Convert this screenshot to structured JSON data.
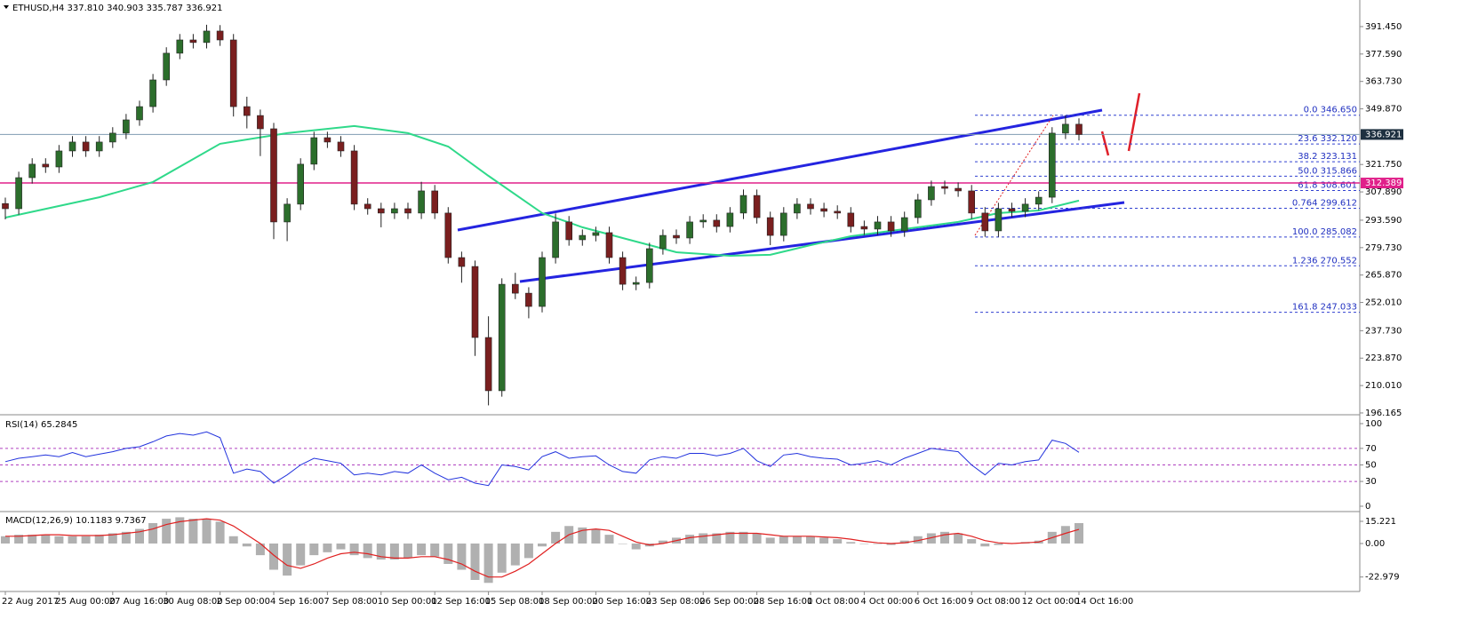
{
  "chart_data": {
    "type": "candlestick",
    "title": "ETHUSD,H4  337.810 340.903 335.787 336.921",
    "up_color": "#2c6e2c",
    "down_color": "#7a1f1f",
    "ylim": [
      195.7,
      401.3
    ],
    "yticks": [
      {
        "value": 391.45,
        "label": "391.450"
      },
      {
        "value": 377.59,
        "label": "377.590"
      },
      {
        "value": 363.73,
        "label": "363.730"
      },
      {
        "value": 349.87,
        "label": "349.870"
      },
      {
        "value": 321.75,
        "label": "321.750"
      },
      {
        "value": 307.89,
        "label": "307.890"
      },
      {
        "value": 293.59,
        "label": "293.590"
      },
      {
        "value": 279.73,
        "label": "279.730"
      },
      {
        "value": 265.87,
        "label": "265.870"
      },
      {
        "value": 252.01,
        "label": "252.010"
      },
      {
        "value": 237.73,
        "label": "237.730"
      },
      {
        "value": 223.87,
        "label": "223.870"
      },
      {
        "value": 210.01,
        "label": "210.010"
      },
      {
        "value": 196.165,
        "label": "196.165"
      }
    ],
    "xticks": [
      {
        "value": 0,
        "label": "22 Aug 2017"
      },
      {
        "value": 4,
        "label": "25 Aug 00:00"
      },
      {
        "value": 8,
        "label": "27 Aug 16:00"
      },
      {
        "value": 12,
        "label": "30 Aug 08:00"
      },
      {
        "value": 16,
        "label": "2 Sep 00:00"
      },
      {
        "value": 20,
        "label": "4 Sep 16:00"
      },
      {
        "value": 24,
        "label": "7 Sep 08:00"
      },
      {
        "value": 28,
        "label": "10 Sep 00:00"
      },
      {
        "value": 32,
        "label": "12 Sep 16:00"
      },
      {
        "value": 36,
        "label": "15 Sep 08:00"
      },
      {
        "value": 40,
        "label": "18 Sep 00:00"
      },
      {
        "value": 44,
        "label": "20 Sep 16:00"
      },
      {
        "value": 48,
        "label": "23 Sep 08:00"
      },
      {
        "value": 52,
        "label": "26 Sep 00:00"
      },
      {
        "value": 56,
        "label": "28 Sep 16:00"
      },
      {
        "value": 60,
        "label": "1 Oct 08:00"
      },
      {
        "value": 64,
        "label": "4 Oct 00:00"
      },
      {
        "value": 68,
        "label": "6 Oct 16:00"
      },
      {
        "value": 72,
        "label": "9 Oct 08:00"
      },
      {
        "value": 76,
        "label": "12 Oct 00:00"
      },
      {
        "value": 80,
        "label": "14 Oct 16:00"
      }
    ],
    "open": [
      302.0,
      299.4,
      315.1,
      321.9,
      320.5,
      328.6,
      333.1,
      328.6,
      333.1,
      337.6,
      344.3,
      351.0,
      364.5,
      378.0,
      384.7,
      383.4,
      389.2,
      384.7,
      351.0,
      346.5,
      339.8,
      292.7,
      301.7,
      321.9,
      335.3,
      333.1,
      328.6,
      301.7,
      299.4,
      297.2,
      299.4,
      297.2,
      308.4,
      297.2,
      274.7,
      270.2,
      234.3,
      207.4,
      261.2,
      256.7,
      250.0,
      274.7,
      292.7,
      283.7,
      285.9,
      287.3,
      274.7,
      261.2,
      262.1,
      279.2,
      285.9,
      284.6,
      292.7,
      293.6,
      290.4,
      297.2,
      306.1,
      294.9,
      285.9,
      297.2,
      301.7,
      299.4,
      298.1,
      297.2,
      290.4,
      289.1,
      292.7,
      288.2,
      294.9,
      303.9,
      310.6,
      309.7,
      308.4,
      297.2,
      288.2,
      299.4,
      298.1,
      301.7,
      305.2,
      337.6,
      342.1
    ],
    "high": [
      305.0,
      318.1,
      324.9,
      324.9,
      331.6,
      336.1,
      336.1,
      336.1,
      340.6,
      347.3,
      354.0,
      367.5,
      381.0,
      387.7,
      387.7,
      392.4,
      392.2,
      387.7,
      356.0,
      349.5,
      342.8,
      304.7,
      324.9,
      338.3,
      338.3,
      336.1,
      331.6,
      304.7,
      302.4,
      302.4,
      302.4,
      313.0,
      311.4,
      300.2,
      277.7,
      273.2,
      245.0,
      264.2,
      267.0,
      259.7,
      277.7,
      297.0,
      295.7,
      288.9,
      290.3,
      290.3,
      277.7,
      265.1,
      282.2,
      288.9,
      288.9,
      295.7,
      296.6,
      296.6,
      300.2,
      309.1,
      309.1,
      297.9,
      300.2,
      304.7,
      304.7,
      302.4,
      301.1,
      300.2,
      293.4,
      295.7,
      295.7,
      297.9,
      306.9,
      313.6,
      313.6,
      312.7,
      311.4,
      300.2,
      302.4,
      302.4,
      304.7,
      308.2,
      340.6,
      346.6,
      345.1
    ],
    "low": [
      294.0,
      296.4,
      312.1,
      317.5,
      317.5,
      325.6,
      325.6,
      325.6,
      330.1,
      334.6,
      341.3,
      348.0,
      361.5,
      375.0,
      380.4,
      380.4,
      381.7,
      346.0,
      340.0,
      326.0,
      284.0,
      283.0,
      298.7,
      318.9,
      330.1,
      325.6,
      298.7,
      296.4,
      290.0,
      294.2,
      294.2,
      294.2,
      294.2,
      271.7,
      262.0,
      225.0,
      200.0,
      204.4,
      253.7,
      244.0,
      247.0,
      271.7,
      280.7,
      280.7,
      282.9,
      271.7,
      258.2,
      258.2,
      259.1,
      276.2,
      281.6,
      281.6,
      289.7,
      287.4,
      287.4,
      294.2,
      291.9,
      281.0,
      282.9,
      294.2,
      296.4,
      295.1,
      294.2,
      287.4,
      286.1,
      286.1,
      285.2,
      285.2,
      291.9,
      300.9,
      306.7,
      305.4,
      294.2,
      285.2,
      285.2,
      295.1,
      295.1,
      298.7,
      302.2,
      334.6,
      333.9
    ],
    "close": [
      299.4,
      315.1,
      321.9,
      320.5,
      328.6,
      333.1,
      328.6,
      333.1,
      337.6,
      344.3,
      351.0,
      364.5,
      378.0,
      384.7,
      383.4,
      389.2,
      384.7,
      351.0,
      346.5,
      339.8,
      292.7,
      301.7,
      321.9,
      335.3,
      333.1,
      328.6,
      301.7,
      299.4,
      297.2,
      299.4,
      297.2,
      308.4,
      297.2,
      274.7,
      270.2,
      234.3,
      207.4,
      261.2,
      256.7,
      250.0,
      274.7,
      292.7,
      283.7,
      285.9,
      287.3,
      274.7,
      261.2,
      262.1,
      279.2,
      285.9,
      284.6,
      292.7,
      293.6,
      290.4,
      297.2,
      306.1,
      294.9,
      285.9,
      297.2,
      301.7,
      299.4,
      298.1,
      297.2,
      290.4,
      289.1,
      292.7,
      288.2,
      294.9,
      303.9,
      310.6,
      309.7,
      308.4,
      297.2,
      288.2,
      299.4,
      298.1,
      301.7,
      305.2,
      337.6,
      342.1,
      336.9
    ],
    "ma": {
      "color": "#2fd98a",
      "x": [
        0,
        7,
        11,
        16,
        21,
        26,
        30,
        33,
        36,
        40,
        43,
        46,
        50,
        54,
        57,
        60,
        63,
        67,
        71,
        74,
        77,
        80
      ],
      "values": [
        294.9,
        305.2,
        312.9,
        332.2,
        337.6,
        341.2,
        337.6,
        330.8,
        316.0,
        297.2,
        290.0,
        284.6,
        277.4,
        275.6,
        276.1,
        281.0,
        285.5,
        289.1,
        292.7,
        297.2,
        298.5,
        303.5
      ]
    },
    "current_price": {
      "value": 336.921,
      "color": "#1e3040"
    },
    "level": {
      "value": 312.389,
      "color": "#e0208a"
    },
    "fib_levels": [
      {
        "value": 346.65,
        "label": "0.0  346.650"
      },
      {
        "value": 332.12,
        "label": "23.6  332.120"
      },
      {
        "value": 323.131,
        "label": "38.2  323.131"
      },
      {
        "value": 315.866,
        "label": "50.0  315.866"
      },
      {
        "value": 308.601,
        "label": "61.8  308.601"
      },
      {
        "value": 299.612,
        "label": "0.764  299.612"
      },
      {
        "value": 285.082,
        "label": "100.0  285.082"
      },
      {
        "value": 270.552,
        "label": "1.236  270.552"
      },
      {
        "value": 247.033,
        "label": "161.8  247.033"
      }
    ],
    "rsi": {
      "title": "RSI(14) 65.2845",
      "color": "#2233dd",
      "ylim": [
        -4.3,
        107.5
      ],
      "yticks": [
        100,
        70,
        50,
        30,
        0
      ],
      "levels": [
        70,
        50,
        30
      ],
      "values": [
        54,
        58,
        60,
        62,
        60,
        65,
        60,
        63,
        66,
        70,
        72,
        78,
        85,
        88,
        86,
        90,
        83,
        40,
        45,
        42,
        28,
        38,
        50,
        58,
        55,
        52,
        38,
        40,
        38,
        42,
        40,
        50,
        40,
        32,
        35,
        28,
        25,
        50,
        48,
        44,
        60,
        66,
        58,
        60,
        61,
        50,
        42,
        40,
        56,
        60,
        58,
        64,
        64,
        61,
        64,
        70,
        55,
        48,
        62,
        64,
        60,
        58,
        57,
        50,
        52,
        55,
        50,
        58,
        64,
        70,
        68,
        66,
        50,
        38,
        52,
        50,
        54,
        56,
        80,
        76,
        65.3
      ]
    },
    "macd": {
      "title": "MACD(12,26,9) 10.1183 9.7367",
      "ylim": [
        -32.3,
        20.7
      ],
      "yticks": [
        15.221,
        {
          "value": 0,
          "label": "0.00"
        },
        -22.979
      ],
      "hist_color": "#b0b0b0",
      "signal_color": "#e02020",
      "hist": [
        5,
        6,
        6,
        6,
        5,
        5,
        5,
        6,
        7,
        8,
        10,
        14,
        17,
        18,
        17,
        17,
        15,
        5,
        -2,
        -8,
        -18,
        -22,
        -15,
        -8,
        -6,
        -4,
        -8,
        -10,
        -11,
        -11,
        -10,
        -8,
        -9,
        -14,
        -18,
        -25,
        -27,
        -20,
        -15,
        -10,
        -2,
        8,
        12,
        11,
        10,
        6,
        0,
        -4,
        -2,
        2,
        4,
        6,
        7,
        7,
        8,
        8,
        7,
        4,
        5,
        5,
        5,
        4,
        3,
        1,
        0,
        0,
        -1,
        2,
        5,
        7,
        8,
        7,
        3,
        -2,
        -1,
        0,
        1,
        2,
        8,
        12,
        14
      ],
      "signal": [
        5,
        5,
        5.5,
        6,
        6,
        5.5,
        5.5,
        5.5,
        6,
        7,
        8,
        10,
        13,
        15,
        16,
        17,
        16,
        12,
        6,
        0,
        -8,
        -15,
        -17,
        -14,
        -10,
        -7,
        -6,
        -7,
        -9,
        -10,
        -10,
        -9,
        -9,
        -11,
        -14,
        -19,
        -23,
        -23,
        -19,
        -14,
        -7,
        0,
        6,
        9,
        10,
        9,
        5,
        1,
        -1,
        0,
        2,
        4,
        5,
        6,
        7,
        7,
        7,
        6,
        5,
        5,
        5,
        4.5,
        4,
        3,
        1.5,
        0.5,
        0,
        0.5,
        2,
        4,
        6,
        7,
        5,
        2,
        0.5,
        0,
        0.5,
        1,
        4,
        7,
        9.7
      ]
    }
  }
}
